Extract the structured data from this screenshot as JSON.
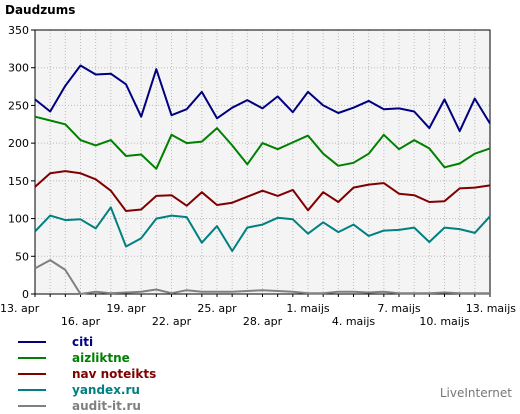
{
  "chart_data": {
    "type": "line",
    "title": "Daudzums",
    "ylim": [
      0,
      350
    ],
    "yticks": [
      0,
      50,
      100,
      150,
      200,
      250,
      300,
      350
    ],
    "grid": true,
    "x_tick_labels": [
      {
        "index": 0,
        "label": "13. apr",
        "row": 1
      },
      {
        "index": 3,
        "label": "16. apr",
        "row": 2
      },
      {
        "index": 6,
        "label": "19. apr",
        "row": 1
      },
      {
        "index": 9,
        "label": "22. apr",
        "row": 2
      },
      {
        "index": 12,
        "label": "25. apr",
        "row": 1
      },
      {
        "index": 15,
        "label": "28. apr",
        "row": 2
      },
      {
        "index": 18,
        "label": "1. maijs",
        "row": 1
      },
      {
        "index": 21,
        "label": "4. maijs",
        "row": 2
      },
      {
        "index": 24,
        "label": "7. maijs",
        "row": 1
      },
      {
        "index": 27,
        "label": "10. maijs",
        "row": 2
      },
      {
        "index": 30,
        "label": "13. maijs",
        "row": 1
      }
    ],
    "series": [
      {
        "name": "citi",
        "color": "#000080",
        "values": [
          258,
          242,
          276,
          303,
          291,
          292,
          278,
          235,
          298,
          237,
          245,
          268,
          233,
          247,
          257,
          246,
          262,
          241,
          268,
          250,
          240,
          247,
          256,
          245,
          246,
          242,
          220,
          258,
          216,
          259,
          226
        ]
      },
      {
        "name": "aizliktne",
        "color": "#008000",
        "values": [
          235,
          230,
          225,
          204,
          197,
          204,
          183,
          185,
          166,
          211,
          200,
          202,
          220,
          197,
          172,
          200,
          192,
          201,
          210,
          186,
          170,
          174,
          186,
          211,
          192,
          204,
          193,
          168,
          173,
          186,
          193
        ]
      },
      {
        "name": "nav noteikts",
        "color": "#800000",
        "values": [
          142,
          160,
          163,
          160,
          152,
          137,
          110,
          112,
          130,
          131,
          117,
          135,
          118,
          121,
          129,
          137,
          130,
          138,
          111,
          135,
          122,
          141,
          145,
          147,
          133,
          131,
          122,
          123,
          140,
          141,
          144
        ]
      },
      {
        "name": "yandex.ru",
        "color": "#008080",
        "values": [
          83,
          104,
          98,
          99,
          87,
          115,
          63,
          74,
          100,
          104,
          102,
          68,
          90,
          57,
          88,
          92,
          101,
          99,
          80,
          95,
          82,
          92,
          77,
          84,
          85,
          88,
          69,
          88,
          86,
          81,
          103
        ]
      },
      {
        "name": "audit-it.ru",
        "color": "#808080",
        "values": [
          34,
          45,
          32,
          0,
          3,
          1,
          2,
          3,
          6,
          1,
          5,
          3,
          3,
          3,
          4,
          5,
          4,
          3,
          1,
          1,
          3,
          3,
          2,
          3,
          1,
          1,
          1,
          2,
          1,
          1,
          1
        ]
      }
    ]
  },
  "footer": {
    "credit": "LiveInternet"
  }
}
